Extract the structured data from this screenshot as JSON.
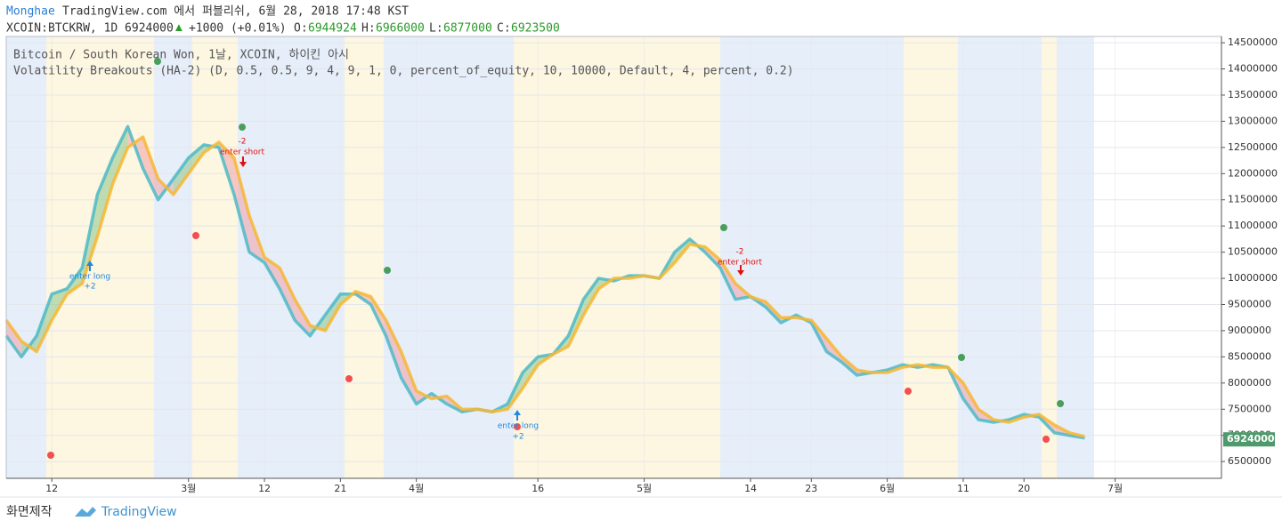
{
  "header": {
    "author": "Monghae",
    "published": "TradingView.com 에서 퍼블리쉬, 6월 28, 2018 17:48 KST",
    "symbol": "XCOIN:BTCKRW, 1D 6924000",
    "arrow": "▲",
    "change": "+1000 (+0.01%)",
    "o_label": "O:",
    "o": "6944924",
    "h_label": "H:",
    "h": "6966000",
    "l_label": "L:",
    "l": "6877000",
    "c_label": "C:",
    "c": "6923500"
  },
  "footer": {
    "made_with": "화면제작",
    "brand": "TradingView"
  },
  "chart_data": {
    "type": "line",
    "legend_title": "Bitcoin / South Korean Won, 1날, XCOIN, 하이킨 아시",
    "indicator": "Volatility Breakouts (HA-2) (D, 0.5, 0.5, 9, 4, 9, 1, 0, percent_of_equity, 10, 10000, Default, 4, percent, 0.2)",
    "annotations": [
      "enter long",
      "+2",
      "-2",
      "enter short",
      "enter long",
      "+2",
      "-2",
      "enter short"
    ],
    "last_price": 6924000,
    "categories": [
      null,
      null,
      null,
      "12",
      null,
      null,
      null,
      null,
      null,
      null,
      null,
      null,
      "3월",
      null,
      null,
      null,
      null,
      "12",
      null,
      null,
      null,
      null,
      "21",
      null,
      null,
      null,
      null,
      "4월",
      null,
      null,
      null,
      null,
      null,
      null,
      null,
      "16",
      null,
      null,
      null,
      null,
      null,
      null,
      "5월",
      null,
      null,
      null,
      null,
      null,
      null,
      "14",
      null,
      null,
      null,
      "23",
      null,
      null,
      null,
      null,
      "6월",
      null,
      null,
      null,
      null,
      "11",
      null,
      null,
      null,
      "20",
      null,
      null,
      null,
      null,
      null,
      "7월",
      null,
      null,
      null,
      null,
      null,
      null
    ],
    "series": [
      {
        "color": "#4bbac8",
        "values": [
          8900000,
          8500000,
          8900000,
          9700000,
          9800000,
          10200000,
          11600000,
          12300000,
          12900000,
          12100000,
          11500000,
          11900000,
          12300000,
          12550000,
          12500000,
          11600000,
          10500000,
          10300000,
          9800000,
          9200000,
          8900000,
          9300000,
          9700000,
          9700000,
          9500000,
          8900000,
          8100000,
          7600000,
          7800000,
          7600000,
          7450000,
          7500000,
          7450000,
          7600000,
          8200000,
          8500000,
          8550000,
          8900000,
          9600000,
          10000000,
          9950000,
          10050000,
          10050000,
          10000000,
          10500000,
          10750000,
          10500000,
          10200000,
          9600000,
          9650000,
          9450000,
          9150000,
          9300000,
          9150000,
          8600000,
          8400000,
          8150000,
          8200000,
          8250000,
          8350000,
          8300000,
          8350000,
          8300000,
          7700000,
          7300000,
          7250000,
          7300000,
          7400000,
          7350000,
          7050000,
          7000000,
          6950000,
          null,
          null,
          null,
          null,
          null,
          null,
          null,
          null
        ]
      },
      {
        "color": "#f7b733",
        "values": [
          9200000,
          8800000,
          8600000,
          9200000,
          9700000,
          9900000,
          10800000,
          11800000,
          12500000,
          12700000,
          11900000,
          11600000,
          12000000,
          12400000,
          12600000,
          12300000,
          11200000,
          10400000,
          10200000,
          9600000,
          9100000,
          9000000,
          9500000,
          9750000,
          9650000,
          9200000,
          8600000,
          7850000,
          7700000,
          7750000,
          7500000,
          7500000,
          7450000,
          7500000,
          7900000,
          8350000,
          8550000,
          8700000,
          9300000,
          9800000,
          10000000,
          10000000,
          10050000,
          10000000,
          10300000,
          10650000,
          10600000,
          10350000,
          9900000,
          9650000,
          9550000,
          9250000,
          9250000,
          9200000,
          8850000,
          8500000,
          8250000,
          8200000,
          8200000,
          8300000,
          8350000,
          8300000,
          8300000,
          8000000,
          7500000,
          7300000,
          7250000,
          7350000,
          7400000,
          7200000,
          7050000,
          6980000,
          null,
          null,
          null,
          null,
          null,
          null,
          null,
          null
        ]
      }
    ],
    "ylim": [
      6180000,
      14620000
    ],
    "yticks": [
      6500000,
      7000000,
      7500000,
      8000000,
      8500000,
      9000000,
      9500000,
      10000000,
      10500000,
      11000000,
      11500000,
      12000000,
      12500000,
      13000000,
      13500000,
      14000000,
      14500000
    ],
    "grid": true
  }
}
